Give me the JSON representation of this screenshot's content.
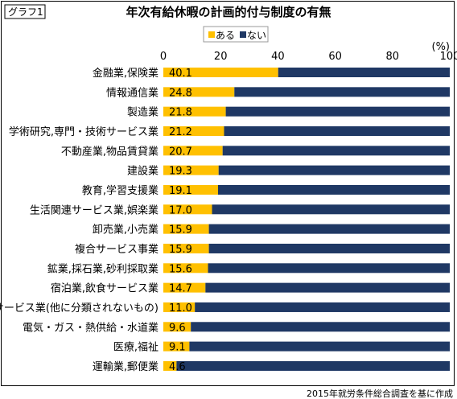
{
  "chart_data": {
    "type": "bar",
    "orientation": "horizontal",
    "stacked": true,
    "tag": "グラフ1",
    "title": "年次有給休暇の計画的付与制度の有無",
    "unit": "(%)",
    "xlim": [
      0,
      100
    ],
    "xticks": [
      0,
      20,
      40,
      60,
      80,
      100
    ],
    "legend_position": "top",
    "grid": false,
    "categories": [
      "金融業,保険業",
      "情報通信業",
      "製造業",
      "学術研究,専門・技術サービス業",
      "不動産業,物品賃貸業",
      "建設業",
      "教育,学習支援業",
      "生活関連サービス業,娯楽業",
      "卸売業,小売業",
      "複合サービス事業",
      "鉱業,採石業,砂利採取業",
      "宿泊業,飲食サービス業",
      "サービス業(他に分類されないもの)",
      "電気・ガス・熱供給・水道業",
      "医療,福祉",
      "運輸業,郵便業"
    ],
    "series": [
      {
        "name": "ある",
        "color": "#ffc000",
        "values": [
          40.1,
          24.8,
          21.8,
          21.2,
          20.7,
          19.3,
          19.1,
          17.0,
          15.9,
          15.9,
          15.6,
          14.7,
          11.0,
          9.6,
          9.1,
          4.6
        ],
        "value_labels": [
          "40.1",
          "24.8",
          "21.8",
          "21.2",
          "20.7",
          "19.3",
          "19.1",
          "17.0",
          "15.9",
          "15.9",
          "15.6",
          "14.7",
          "11.0",
          "9.6",
          "9.1",
          "4.6"
        ]
      },
      {
        "name": "ない",
        "color": "#1f3864",
        "values": [
          59.9,
          75.2,
          78.2,
          78.8,
          79.3,
          80.7,
          80.9,
          83.0,
          84.1,
          84.1,
          84.4,
          85.3,
          89.0,
          90.4,
          90.9,
          95.4
        ]
      }
    ],
    "source": "2015年就労条件総合調査を基に作成"
  }
}
